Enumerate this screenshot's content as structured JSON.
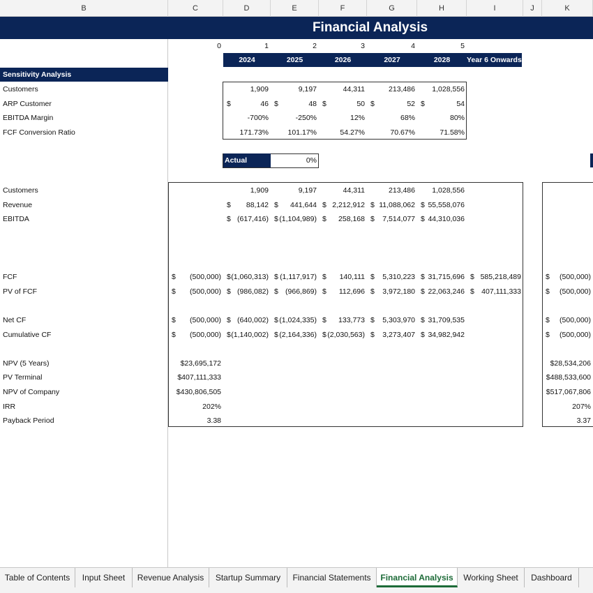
{
  "columns": [
    "B",
    "C",
    "D",
    "E",
    "F",
    "G",
    "H",
    "I",
    "J",
    "K"
  ],
  "title": "Financial Analysis",
  "period_numbers": [
    "0",
    "1",
    "2",
    "3",
    "4",
    "5"
  ],
  "years": [
    "2024",
    "2025",
    "2026",
    "2027",
    "2028",
    "Year 6 Onwards"
  ],
  "sensitivity": {
    "header": "Sensitivity Analysis",
    "rows": [
      {
        "label": "Customers",
        "currency": false,
        "values": [
          "1,909",
          "9,197",
          "44,311",
          "213,486",
          "1,028,556"
        ]
      },
      {
        "label": "ARP Customer",
        "currency": true,
        "values": [
          "46",
          "48",
          "50",
          "52",
          "54"
        ]
      },
      {
        "label": "EBITDA Margin",
        "currency": false,
        "values": [
          "-700%",
          "-250%",
          "12%",
          "68%",
          "80%"
        ]
      },
      {
        "label": "FCF Conversion Ratio",
        "currency": false,
        "values": [
          "171.73%",
          "101.17%",
          "54.27%",
          "70.67%",
          "71.58%"
        ]
      }
    ]
  },
  "actual": {
    "label": "Actual",
    "value": "0%"
  },
  "main_rows": [
    {
      "label": "Customers",
      "currency": false,
      "c": "",
      "vals": [
        "1,909",
        "9,197",
        "44,311",
        "213,486",
        "1,028,556"
      ],
      "i": "",
      "k": ""
    },
    {
      "label": "Revenue",
      "currency": true,
      "c": "",
      "vals": [
        "88,142",
        "441,644",
        "2,212,912",
        "11,088,062",
        "55,558,076"
      ],
      "i": "",
      "k": ""
    },
    {
      "label": "EBITDA",
      "currency": true,
      "c": "",
      "vals": [
        "(617,416)",
        "(1,104,989)",
        "258,168",
        "7,514,077",
        "44,310,036"
      ],
      "i": "",
      "k": ""
    },
    null,
    null,
    null,
    {
      "label": "FCF",
      "currency": true,
      "c": "(500,000)",
      "vals": [
        "(1,060,313)",
        "(1,117,917)",
        "140,111",
        "5,310,223",
        "31,715,696"
      ],
      "i": "585,218,489",
      "k": "(500,000)"
    },
    {
      "label": "PV of FCF",
      "currency": true,
      "c": "(500,000)",
      "vals": [
        "(986,082)",
        "(966,869)",
        "112,696",
        "3,972,180",
        "22,063,246"
      ],
      "i": "407,111,333",
      "k": "(500,000)"
    },
    null,
    {
      "label": "Net CF",
      "currency": true,
      "c": "(500,000)",
      "vals": [
        "(640,002)",
        "(1,024,335)",
        "133,773",
        "5,303,970",
        "31,709,535"
      ],
      "i": "",
      "k": "(500,000)"
    },
    {
      "label": "Cumulative CF",
      "currency": true,
      "c": "(500,000)",
      "vals": [
        "(1,140,002)",
        "(2,164,336)",
        "(2,030,563)",
        "3,273,407",
        "34,982,942"
      ],
      "i": "",
      "k": "(500,000)"
    },
    null,
    {
      "label": "NPV (5 Years)",
      "currency": false,
      "c": "$23,695,172",
      "vals": [],
      "i": "",
      "k": "$28,534,206"
    },
    {
      "label": "PV Terminal",
      "currency": false,
      "c": "$407,111,333",
      "vals": [],
      "i": "",
      "k": "$488,533,600"
    },
    {
      "label": "NPV of Company",
      "currency": false,
      "c": "$430,806,505",
      "vals": [],
      "i": "",
      "k": "$517,067,806"
    },
    {
      "label": "IRR",
      "currency": false,
      "c": "202%",
      "vals": [],
      "i": "",
      "k": "207%"
    },
    {
      "label": "Payback Period",
      "currency": false,
      "c": "3.38",
      "vals": [],
      "i": "",
      "k": "3.37"
    }
  ],
  "tabs": [
    "Table of Contents",
    "Input Sheet",
    "Revenue Analysis",
    "Startup Summary",
    "Financial Statements",
    "Financial Analysis",
    "Working Sheet",
    "Dashboard"
  ],
  "active_tab": "Financial Analysis",
  "colors": {
    "navy": "#0b2557",
    "active_tab": "#1d6b38"
  }
}
